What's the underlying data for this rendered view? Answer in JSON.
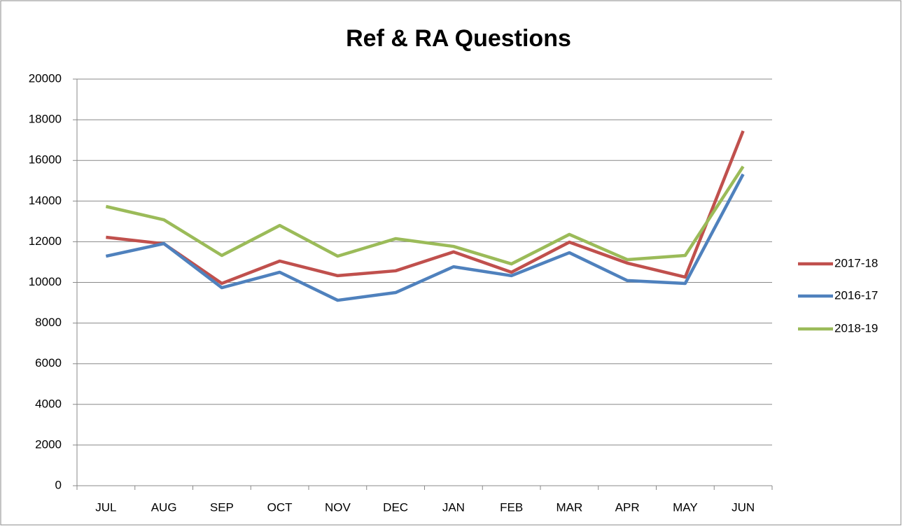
{
  "chart_data": {
    "type": "line",
    "title": "Ref & RA Questions",
    "categories": [
      "JUL",
      "AUG",
      "SEP",
      "OCT",
      "NOV",
      "DEC",
      "JAN",
      "FEB",
      "MAR",
      "APR",
      "MAY",
      "JUN"
    ],
    "series": [
      {
        "name": "2017-18",
        "color": "#c0504d",
        "values": [
          12220,
          11900,
          9950,
          11050,
          10330,
          10570,
          11500,
          10500,
          11980,
          10950,
          10260,
          17450
        ]
      },
      {
        "name": "2016-17",
        "color": "#4f81bd",
        "values": [
          11290,
          11910,
          9740,
          10500,
          9120,
          9500,
          10770,
          10330,
          11460,
          10090,
          9950,
          15320
        ]
      },
      {
        "name": "2018-19",
        "color": "#9bbb59",
        "values": [
          13735,
          13080,
          11325,
          12800,
          11290,
          12150,
          11770,
          10910,
          12360,
          11120,
          11325,
          15700
        ]
      }
    ],
    "ylim": [
      0,
      20000
    ],
    "yticks": [
      0,
      2000,
      4000,
      6000,
      8000,
      10000,
      12000,
      14000,
      16000,
      18000,
      20000
    ],
    "grid": true,
    "legend": "right"
  }
}
